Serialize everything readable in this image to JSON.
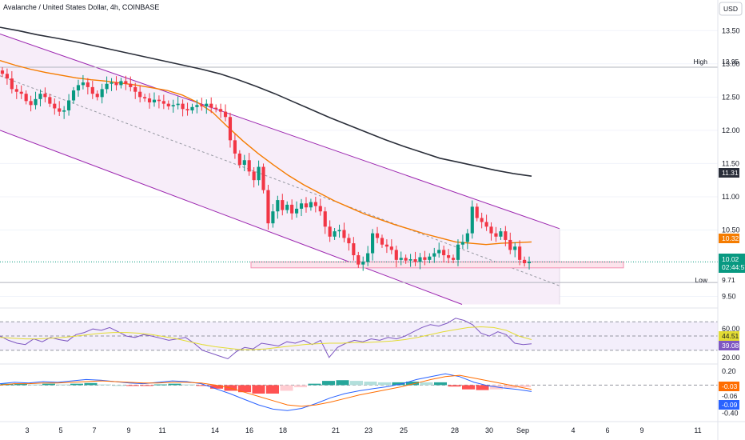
{
  "header": {
    "title": "Avalanche / United States Dollar, 4h, COINBASE",
    "currency_button": "USD"
  },
  "price_tags": {
    "high_label": "High",
    "high_value": "12.95",
    "low_label": "Low",
    "low_value": "9.71",
    "ma200_value": "11.31",
    "ma50_value": "10.32",
    "last_value": "10.02",
    "countdown": "02:44:57"
  },
  "rsi_tags": {
    "a": "44.51",
    "b": "39.08"
  },
  "macd_tags": {
    "a": "-0.03",
    "b": "-0.06",
    "c": "-0.09"
  },
  "colors": {
    "up": "#089981",
    "down": "#f23645",
    "channel": "#9c27b0",
    "channel_fill": "#f7edf9",
    "ma_short": "#f57c00",
    "ma_long": "#2a2e39",
    "rsi": "#7e57c2",
    "rsi_ma": "#e3dc34",
    "macd": "#2962ff",
    "signal": "#ff6d00",
    "last_price": "#089981"
  },
  "chart_data": [
    {
      "type": "candlestick",
      "title": "Avalanche / United States Dollar, 4h, COINBASE",
      "x_ticks": [
        "3",
        "5",
        "7",
        "9",
        "11",
        "14",
        "16",
        "18",
        "21",
        "23",
        "25",
        "28",
        "30",
        "Sep",
        "4",
        "6",
        "9",
        "11"
      ],
      "y_ticks": [
        "13.50",
        "13.00",
        "12.50",
        "12.00",
        "11.50",
        "11.00",
        "10.50",
        "9.50"
      ],
      "ylim": [
        9.35,
        13.72
      ],
      "series": [
        {
          "name": "close",
          "values": [
            12.85,
            12.78,
            12.62,
            12.58,
            12.55,
            12.44,
            12.38,
            12.47,
            12.55,
            12.5,
            12.4,
            12.33,
            12.28,
            12.3,
            12.45,
            12.6,
            12.68,
            12.72,
            12.65,
            12.55,
            12.5,
            12.62,
            12.7,
            12.72,
            12.68,
            12.74,
            12.7,
            12.65,
            12.58,
            12.5,
            12.48,
            12.42,
            12.46,
            12.44,
            12.4,
            12.36,
            12.38,
            12.4,
            12.32,
            12.3,
            12.35,
            12.38,
            12.36,
            12.4,
            12.34,
            12.32,
            12.28,
            12.2,
            11.85,
            11.65,
            11.48,
            11.55,
            11.38,
            11.25,
            11.45,
            11.1,
            10.6,
            10.78,
            10.95,
            10.8,
            10.88,
            10.75,
            10.82,
            10.9,
            10.84,
            10.92,
            10.86,
            10.78,
            10.55,
            10.4,
            10.48,
            10.5,
            10.38,
            10.3,
            10.12,
            9.98,
            10.02,
            10.15,
            10.45,
            10.38,
            10.28,
            10.25,
            10.2,
            10.05,
            10.08,
            10.04,
            10.06,
            10.02,
            10.09,
            10.05,
            10.1,
            10.15,
            10.2,
            10.12,
            10.08,
            10.05,
            10.28,
            10.32,
            10.45,
            10.85,
            10.68,
            10.62,
            10.55,
            10.45,
            10.4,
            10.48,
            10.35,
            10.2,
            10.25,
            10.05,
            10.0,
            10.02
          ]
        },
        {
          "name": "MA (orange)",
          "values": [
            13.05,
            12.98,
            12.92,
            12.87,
            12.83,
            12.79,
            12.76,
            12.74,
            12.71,
            12.68,
            12.64,
            12.6,
            12.53,
            12.42,
            12.27,
            12.05,
            11.84,
            11.65,
            11.48,
            11.32,
            11.18,
            11.06,
            10.94,
            10.84,
            10.74,
            10.66,
            10.58,
            10.51,
            10.44,
            10.38,
            10.32,
            10.3,
            10.28,
            10.3,
            10.31,
            10.32
          ]
        },
        {
          "name": "MA (dark)",
          "values": [
            13.55,
            13.5,
            13.44,
            13.39,
            13.34,
            13.28,
            13.22,
            13.16,
            13.1,
            13.04,
            12.98,
            12.92,
            12.85,
            12.76,
            12.66,
            12.55,
            12.43,
            12.31,
            12.19,
            12.08,
            11.97,
            11.86,
            11.76,
            11.67,
            11.58,
            11.52,
            11.46,
            11.4,
            11.35,
            11.31
          ]
        }
      ]
    },
    {
      "type": "line",
      "title": "RSI",
      "y_ticks": [
        "60.00",
        "20.00"
      ],
      "ylim": [
        13,
        86
      ],
      "series": [
        {
          "name": "RSI",
          "values": [
            50,
            44,
            40,
            38,
            46,
            42,
            48,
            45,
            43,
            52,
            55,
            60,
            58,
            62,
            56,
            50,
            48,
            52,
            50,
            47,
            44,
            46,
            48,
            40,
            30,
            26,
            22,
            18,
            28,
            34,
            32,
            40,
            38,
            36,
            42,
            40,
            44,
            38,
            44,
            20,
            34,
            40,
            44,
            42,
            46,
            44,
            48,
            46,
            50,
            56,
            62,
            66,
            64,
            68,
            75,
            72,
            66,
            54,
            50,
            56,
            52,
            40,
            38,
            39
          ]
        },
        {
          "name": "RSI MA",
          "values": [
            48,
            47,
            46,
            46,
            47,
            48,
            50,
            52,
            54,
            55,
            55,
            54,
            52,
            49,
            46,
            42,
            38,
            35,
            33,
            31,
            31,
            32,
            34,
            36,
            38,
            39,
            40,
            40,
            41,
            41,
            42,
            43,
            45,
            48,
            52,
            56,
            59,
            62,
            63,
            62,
            58,
            50,
            45
          ]
        }
      ]
    },
    {
      "type": "bar",
      "title": "MACD",
      "y_ticks": [
        "0.20",
        "-0.40"
      ],
      "ylim": [
        -0.46,
        0.22
      ],
      "series": [
        {
          "name": "MACD",
          "values": [
            0.02,
            0.04,
            0.03,
            0.05,
            0.04,
            0.06,
            0.08,
            0.07,
            0.05,
            0.03,
            0.02,
            0.04,
            0.06,
            0.05,
            0.02,
            -0.05,
            -0.12,
            -0.2,
            -0.28,
            -0.34,
            -0.36,
            -0.33,
            -0.26,
            -0.18,
            -0.12,
            -0.08,
            -0.05,
            -0.02,
            0.02,
            0.08,
            0.12,
            0.16,
            0.12,
            0.04,
            -0.01,
            -0.04,
            -0.06,
            -0.09
          ]
        },
        {
          "name": "Signal",
          "values": [
            0.0,
            0.02,
            0.02,
            0.03,
            0.03,
            0.04,
            0.05,
            0.06,
            0.05,
            0.04,
            0.03,
            0.03,
            0.04,
            0.04,
            0.03,
            0.0,
            -0.04,
            -0.1,
            -0.16,
            -0.22,
            -0.28,
            -0.3,
            -0.28,
            -0.24,
            -0.19,
            -0.14,
            -0.1,
            -0.06,
            -0.02,
            0.03,
            0.08,
            0.12,
            0.14,
            0.1,
            0.06,
            0.02,
            -0.02,
            -0.06
          ]
        },
        {
          "name": "Histogram",
          "values": [
            0.02,
            0.02,
            0.01,
            0.02,
            0.01,
            0.02,
            0.03,
            0.01,
            0.0,
            -0.01,
            -0.01,
            0.01,
            0.02,
            0.01,
            -0.01,
            -0.05,
            -0.08,
            -0.1,
            -0.12,
            -0.12,
            -0.08,
            -0.03,
            0.02,
            0.06,
            0.07,
            0.06,
            0.05,
            0.04,
            0.04,
            0.05,
            0.04,
            0.04,
            -0.02,
            -0.06,
            -0.07,
            -0.06,
            -0.04,
            -0.03
          ]
        }
      ]
    }
  ]
}
